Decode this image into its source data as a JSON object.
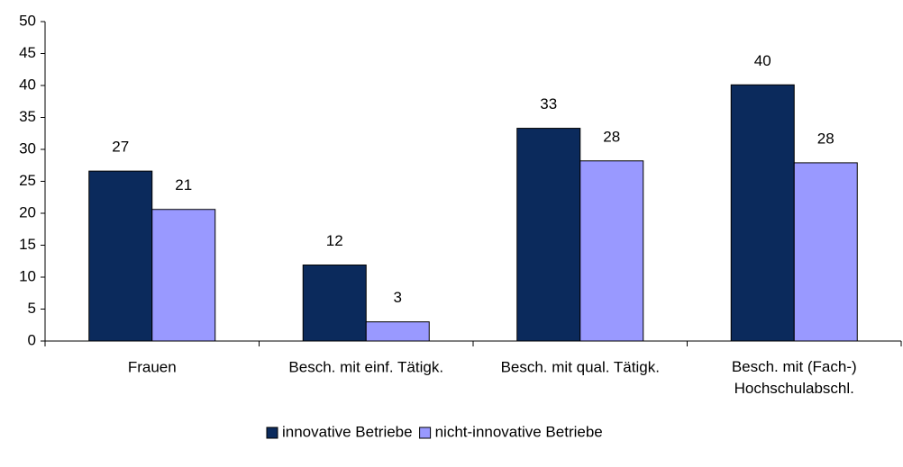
{
  "chart_data": {
    "type": "bar",
    "categories": [
      "Frauen",
      "Besch. mit einf. Tätigk.",
      "Besch. mit qual. Tätigk.",
      "Besch. mit (Fach-)\nHochschulabschl."
    ],
    "series": [
      {
        "name": "innovative Betriebe",
        "color": "#0b2a5c",
        "values": [
          26.6,
          11.9,
          33.3,
          40.1
        ],
        "value_labels": [
          "27",
          "12",
          "33",
          "40"
        ]
      },
      {
        "name": "nicht-innovative Betriebe",
        "color": "#9999ff",
        "values": [
          20.6,
          3.0,
          28.2,
          27.9
        ],
        "value_labels": [
          "21",
          "3",
          "28",
          "28"
        ]
      }
    ],
    "ylim": [
      0,
      50
    ],
    "yticks": [
      0,
      5,
      10,
      15,
      20,
      25,
      30,
      35,
      40,
      45,
      50
    ],
    "legend": "bottom"
  }
}
